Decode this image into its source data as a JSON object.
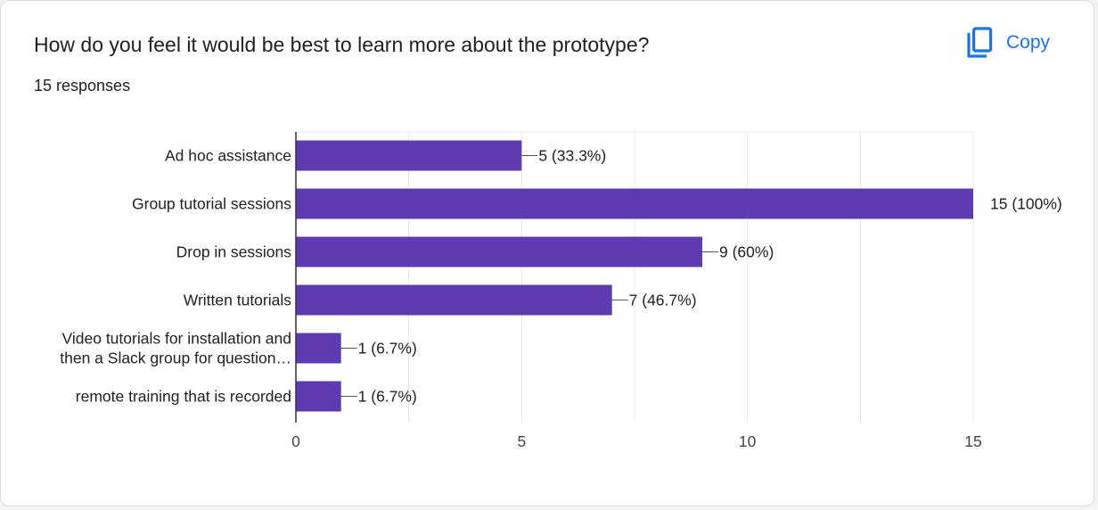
{
  "question": {
    "title": "How do you feel it would be best to learn more about the prototype?",
    "responses": "15 responses"
  },
  "copy_button": {
    "label": "Copy",
    "icon": "copy-icon"
  },
  "colors": {
    "bar": "#5e3bb0",
    "accent": "#1a73e8",
    "grid": "#e8e8e8",
    "axis": "#333333"
  },
  "chart_data": {
    "type": "bar",
    "orientation": "horizontal",
    "categories": [
      [
        "Ad hoc assistance"
      ],
      [
        "Group tutorial sessions"
      ],
      [
        "Drop in sessions"
      ],
      [
        "Written tutorials"
      ],
      [
        "Video tutorials for installation and",
        "then a Slack group for question…"
      ],
      [
        "remote training that is recorded"
      ]
    ],
    "values": [
      5,
      15,
      9,
      7,
      1,
      1
    ],
    "data_labels": [
      "5 (33.3%)",
      "15 (100%)",
      "9 (60%)",
      "7 (46.7%)",
      "1 (6.7%)",
      "1 (6.7%)"
    ],
    "xlim": [
      0,
      15
    ],
    "xticks": [
      0,
      5,
      10,
      15
    ],
    "grid": true,
    "legend": "none"
  }
}
